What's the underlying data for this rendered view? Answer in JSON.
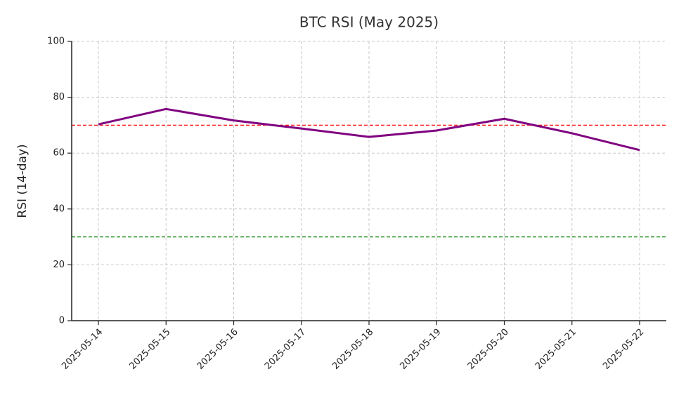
{
  "chart_data": {
    "type": "line",
    "title": "BTC RSI (May 2025)",
    "y_label": "RSI (14-day)",
    "categories": [
      "2025-05-14",
      "2025-05-15",
      "2025-05-16",
      "2025-05-17",
      "2025-05-18",
      "2025-05-19",
      "2025-05-20",
      "2025-05-21",
      "2025-05-22"
    ],
    "series": [
      {
        "color": "#800080",
        "values": [
          70.3,
          75.8,
          71.7,
          68.8,
          65.8,
          68.1,
          72.3,
          67.1,
          61.1
        ]
      }
    ],
    "reference_lines": [
      {
        "value": 70,
        "color": "#ff0000"
      },
      {
        "value": 30,
        "color": "#008000"
      }
    ],
    "ylim": [
      0,
      100
    ],
    "yticks": [
      0,
      20,
      40,
      60,
      80,
      100
    ],
    "grid": true
  }
}
